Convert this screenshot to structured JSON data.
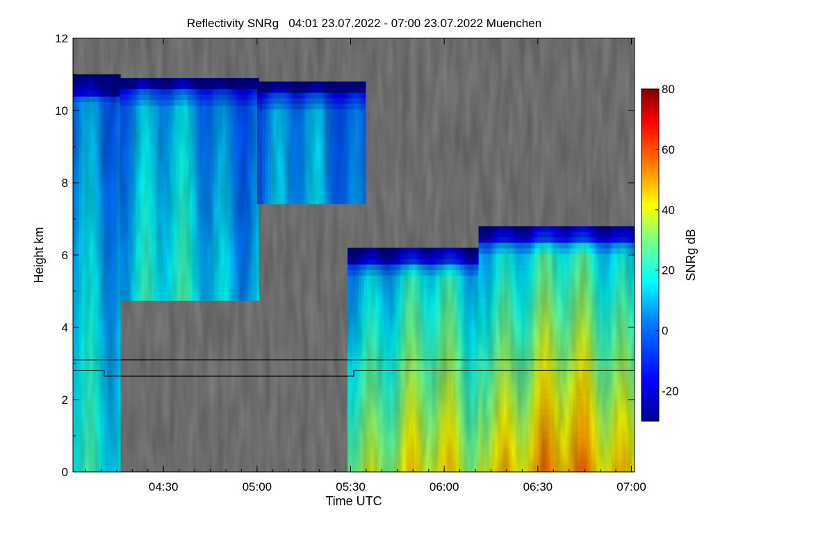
{
  "chart_data": {
    "type": "heatmap",
    "title": "Reflectivity SNRg   04:01 23.07.2022 - 07:00 23.07.2022 Muenchen",
    "xlabel": "Time UTC",
    "ylabel": "Height km",
    "x_range_minutes_utc": [
      241,
      421
    ],
    "x_ticks": [
      {
        "minute": 270,
        "label": "04:30"
      },
      {
        "minute": 300,
        "label": "05:00"
      },
      {
        "minute": 330,
        "label": "05:30"
      },
      {
        "minute": 360,
        "label": "06:00"
      },
      {
        "minute": 390,
        "label": "06:30"
      },
      {
        "minute": 420,
        "label": "07:00"
      }
    ],
    "ylim": [
      0,
      12
    ],
    "y_ticks": [
      0,
      2,
      4,
      6,
      8,
      10,
      12
    ],
    "colorbar": {
      "label": "SNRg dB",
      "range": [
        -30,
        80
      ],
      "ticks": [
        -20,
        0,
        20,
        40,
        60,
        80
      ],
      "position": "right"
    },
    "colors": {
      "no_data": "#808080",
      "colormap": [
        "#00008f",
        "#0000ff",
        "#0080ff",
        "#00ffff",
        "#80ff80",
        "#ffff00",
        "#ff8000",
        "#ff0000",
        "#800000"
      ]
    },
    "overlay_lines": [
      {
        "points": [
          [
            241,
            3.1
          ],
          [
            421,
            3.1
          ]
        ]
      },
      {
        "points": [
          [
            241,
            2.8
          ],
          [
            251,
            2.8
          ],
          [
            251,
            2.65
          ],
          [
            331,
            2.65
          ],
          [
            331,
            2.8
          ],
          [
            421,
            2.8
          ]
        ]
      }
    ],
    "signal_regions": [
      {
        "t_start": 241,
        "t_end": 256,
        "h_base": 0,
        "h_top": 11,
        "intensity": 18
      },
      {
        "t_start": 256,
        "t_end": 300,
        "h_base": 4.8,
        "h_top": 10.9,
        "intensity": 12
      },
      {
        "t_start": 300,
        "t_end": 334,
        "h_base": 7.5,
        "h_top": 10.8,
        "intensity": 4
      },
      {
        "t_start": 329,
        "t_end": 371,
        "h_base": 0,
        "h_top": 6.2,
        "intensity": 30
      },
      {
        "t_start": 371,
        "t_end": 421,
        "h_base": 0,
        "h_top": 6.8,
        "intensity": 38
      }
    ]
  }
}
